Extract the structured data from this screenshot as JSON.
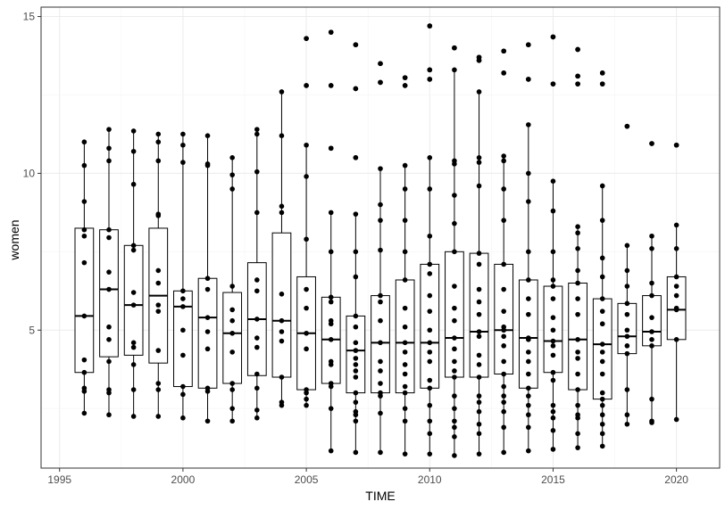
{
  "chart_data": {
    "type": "box",
    "xlabel": "TIME",
    "ylabel": "women",
    "xlim": [
      1994.25,
      2021.75
    ],
    "ylim": [
      0.6,
      15.3
    ],
    "x_ticks": [
      1995,
      2000,
      2005,
      2010,
      2015,
      2020
    ],
    "x_tick_labels": [
      "1995",
      "2000",
      "2005",
      "2010",
      "2015",
      "2020"
    ],
    "y_ticks": [
      5,
      10,
      15
    ],
    "y_tick_labels": [
      "5",
      "10",
      "15"
    ],
    "grid": true,
    "theme": "bw",
    "colors": {
      "box": "#000000",
      "point": "#000000",
      "grid": "#ebebeb",
      "panel_border": "#333333"
    },
    "boxes": [
      {
        "x": 1996,
        "q1": 3.65,
        "median": 5.45,
        "q3": 8.25,
        "whisker_low": 2.35,
        "whisker_high": 11.0,
        "outliers": []
      },
      {
        "x": 1997,
        "q1": 4.15,
        "median": 6.3,
        "q3": 8.2,
        "whisker_low": 2.3,
        "whisker_high": 11.4,
        "outliers": []
      },
      {
        "x": 1998,
        "q1": 4.2,
        "median": 5.8,
        "q3": 7.7,
        "whisker_low": 2.25,
        "whisker_high": 11.35,
        "outliers": []
      },
      {
        "x": 1999,
        "q1": 3.95,
        "median": 6.1,
        "q3": 8.25,
        "whisker_low": 2.25,
        "whisker_high": 11.25,
        "outliers": []
      },
      {
        "x": 2000,
        "q1": 3.2,
        "median": 5.75,
        "q3": 6.25,
        "whisker_low": 2.2,
        "whisker_high": 11.25,
        "outliers": []
      },
      {
        "x": 2001,
        "q1": 3.15,
        "median": 5.4,
        "q3": 6.65,
        "whisker_low": 2.1,
        "whisker_high": 11.2,
        "outliers": []
      },
      {
        "x": 2002,
        "q1": 3.3,
        "median": 4.9,
        "q3": 6.2,
        "whisker_low": 2.1,
        "whisker_high": 10.5,
        "outliers": []
      },
      {
        "x": 2003,
        "q1": 3.55,
        "median": 5.35,
        "q3": 7.15,
        "whisker_low": 2.2,
        "whisker_high": 11.4,
        "outliers": []
      },
      {
        "x": 2004,
        "q1": 3.5,
        "median": 5.3,
        "q3": 8.1,
        "whisker_low": 2.6,
        "whisker_high": 12.6,
        "outliers": []
      },
      {
        "x": 2005,
        "q1": 3.1,
        "median": 4.9,
        "q3": 6.7,
        "whisker_low": 2.6,
        "whisker_high": 10.9,
        "outliers": [
          12.8,
          14.3
        ]
      },
      {
        "x": 2006,
        "q1": 3.3,
        "median": 4.7,
        "q3": 6.05,
        "whisker_low": 1.15,
        "whisker_high": 8.75,
        "outliers": [
          10.8,
          12.8,
          14.5
        ]
      },
      {
        "x": 2007,
        "q1": 3.0,
        "median": 4.35,
        "q3": 5.45,
        "whisker_low": 1.1,
        "whisker_high": 8.7,
        "outliers": [
          10.5,
          12.7,
          14.1
        ]
      },
      {
        "x": 2008,
        "q1": 3.0,
        "median": 4.6,
        "q3": 6.1,
        "whisker_low": 1.1,
        "whisker_high": 10.15,
        "outliers": [
          12.9,
          13.5
        ]
      },
      {
        "x": 2009,
        "q1": 3.0,
        "median": 4.6,
        "q3": 6.6,
        "whisker_low": 1.05,
        "whisker_high": 10.25,
        "outliers": [
          12.8,
          13.05
        ]
      },
      {
        "x": 2010,
        "q1": 3.15,
        "median": 4.6,
        "q3": 7.1,
        "whisker_low": 1.05,
        "whisker_high": 10.5,
        "outliers": [
          13.0,
          13.3,
          14.7
        ]
      },
      {
        "x": 2011,
        "q1": 3.5,
        "median": 4.75,
        "q3": 7.5,
        "whisker_low": 1.0,
        "whisker_high": 13.3,
        "outliers": [
          14.0
        ]
      },
      {
        "x": 2012,
        "q1": 3.5,
        "median": 4.95,
        "q3": 7.45,
        "whisker_low": 1.05,
        "whisker_high": 12.6,
        "outliers": [
          13.6,
          13.7
        ]
      },
      {
        "x": 2013,
        "q1": 3.6,
        "median": 5.0,
        "q3": 7.1,
        "whisker_low": 1.1,
        "whisker_high": 10.55,
        "outliers": [
          13.2,
          13.9
        ]
      },
      {
        "x": 2014,
        "q1": 3.15,
        "median": 4.75,
        "q3": 6.6,
        "whisker_low": 1.15,
        "whisker_high": 11.55,
        "outliers": [
          13.0,
          14.1
        ]
      },
      {
        "x": 2015,
        "q1": 3.65,
        "median": 4.65,
        "q3": 6.4,
        "whisker_low": 1.2,
        "whisker_high": 9.75,
        "outliers": [
          12.85,
          14.35
        ]
      },
      {
        "x": 2016,
        "q1": 3.1,
        "median": 4.7,
        "q3": 6.5,
        "whisker_low": 1.25,
        "whisker_high": 8.3,
        "outliers": [
          12.85,
          13.1,
          13.95
        ]
      },
      {
        "x": 2017,
        "q1": 2.8,
        "median": 4.55,
        "q3": 6.0,
        "whisker_low": 1.3,
        "whisker_high": 9.6,
        "outliers": [
          12.85,
          13.2
        ]
      },
      {
        "x": 2018,
        "q1": 4.25,
        "median": 4.8,
        "q3": 5.85,
        "whisker_low": 2.0,
        "whisker_high": 7.7,
        "outliers": [
          11.5
        ]
      },
      {
        "x": 2019,
        "q1": 4.5,
        "median": 4.95,
        "q3": 6.1,
        "whisker_low": 2.05,
        "whisker_high": 8.0,
        "outliers": [
          10.95
        ]
      },
      {
        "x": 2020,
        "q1": 4.7,
        "median": 5.65,
        "q3": 6.7,
        "whisker_low": 2.15,
        "whisker_high": 8.35,
        "outliers": [
          10.9
        ]
      }
    ],
    "points": [
      {
        "x": 1996,
        "y": [
          11.0,
          10.25,
          9.1,
          8.2,
          8.0,
          7.15,
          5.45,
          4.05,
          3.65,
          3.15,
          3.05,
          2.35
        ]
      },
      {
        "x": 1997,
        "y": [
          11.4,
          10.8,
          10.4,
          8.2,
          7.95,
          6.85,
          6.3,
          5.1,
          4.7,
          4.0,
          3.1,
          3.0,
          2.3
        ]
      },
      {
        "x": 1998,
        "y": [
          11.35,
          10.7,
          9.65,
          7.7,
          7.55,
          6.2,
          5.8,
          4.6,
          4.45,
          3.9,
          3.1,
          2.25
        ]
      },
      {
        "x": 1999,
        "y": [
          11.25,
          11.0,
          10.4,
          8.7,
          8.65,
          6.9,
          6.5,
          5.8,
          5.6,
          4.35,
          3.3,
          3.1,
          2.25
        ]
      },
      {
        "x": 2000,
        "y": [
          11.25,
          10.9,
          10.35,
          6.25,
          6.0,
          5.75,
          5.0,
          4.2,
          3.2,
          2.95,
          2.2
        ]
      },
      {
        "x": 2001,
        "y": [
          11.2,
          10.3,
          10.25,
          6.65,
          6.3,
          5.4,
          4.95,
          4.4,
          3.15,
          3.05,
          2.1
        ]
      },
      {
        "x": 2002,
        "y": [
          10.5,
          9.95,
          9.5,
          6.4,
          5.65,
          5.3,
          4.9,
          4.3,
          3.3,
          3.1,
          2.5,
          2.1
        ]
      },
      {
        "x": 2003,
        "y": [
          11.4,
          11.25,
          10.05,
          8.75,
          6.6,
          6.25,
          5.35,
          4.75,
          4.45,
          3.6,
          3.15,
          2.45,
          2.2
        ]
      },
      {
        "x": 2004,
        "y": [
          12.6,
          11.2,
          8.95,
          8.75,
          6.15,
          5.3,
          4.95,
          4.65,
          3.5,
          2.7,
          2.6
        ]
      },
      {
        "x": 2005,
        "y": [
          14.3,
          12.8,
          10.9,
          9.9,
          7.9,
          6.3,
          5.7,
          4.9,
          4.4,
          3.1,
          3.0,
          2.8,
          2.6
        ]
      },
      {
        "x": 2006,
        "y": [
          14.5,
          12.8,
          10.8,
          8.75,
          7.5,
          6.05,
          5.9,
          5.3,
          5.2,
          4.7,
          4.0,
          3.9,
          3.3,
          3.2,
          2.5,
          1.15
        ]
      },
      {
        "x": 2007,
        "y": [
          14.1,
          12.7,
          10.5,
          8.7,
          7.5,
          6.7,
          5.45,
          5.1,
          4.6,
          4.35,
          4.1,
          3.9,
          3.7,
          3.5,
          3.0,
          2.7,
          2.4,
          2.3,
          2.1,
          1.1
        ]
      },
      {
        "x": 2008,
        "y": [
          13.5,
          12.9,
          10.15,
          9.0,
          8.5,
          7.55,
          6.1,
          5.9,
          5.3,
          4.6,
          4.0,
          3.7,
          3.3,
          3.0,
          2.9,
          2.35,
          1.1
        ]
      },
      {
        "x": 2009,
        "y": [
          13.05,
          12.8,
          10.25,
          9.5,
          8.5,
          7.5,
          6.6,
          5.7,
          5.1,
          4.6,
          4.3,
          3.9,
          3.6,
          3.2,
          3.0,
          2.5,
          2.1,
          1.05
        ]
      },
      {
        "x": 2010,
        "y": [
          14.7,
          13.3,
          13.0,
          10.5,
          9.5,
          8.0,
          7.1,
          6.8,
          6.1,
          5.6,
          5.0,
          4.6,
          4.3,
          4.0,
          3.4,
          3.15,
          2.6,
          2.1,
          1.7,
          1.05
        ]
      },
      {
        "x": 2011,
        "y": [
          14.0,
          13.3,
          10.4,
          10.3,
          9.3,
          8.4,
          7.5,
          6.4,
          5.7,
          5.3,
          4.75,
          4.4,
          4.0,
          3.7,
          3.5,
          2.9,
          2.5,
          2.1,
          1.9,
          1.6,
          1.0
        ]
      },
      {
        "x": 2012,
        "y": [
          13.7,
          13.6,
          12.6,
          10.5,
          10.35,
          9.6,
          7.45,
          7.1,
          6.3,
          5.9,
          5.5,
          4.95,
          4.8,
          4.2,
          3.9,
          3.5,
          2.9,
          2.7,
          2.4,
          2.0,
          1.7,
          1.05
        ]
      },
      {
        "x": 2013,
        "y": [
          13.9,
          13.2,
          10.55,
          10.4,
          9.5,
          8.5,
          7.1,
          6.3,
          5.6,
          5.1,
          5.0,
          4.8,
          4.5,
          4.0,
          3.6,
          3.2,
          2.9,
          2.7,
          2.4,
          1.9,
          1.1
        ]
      },
      {
        "x": 2014,
        "y": [
          14.1,
          13.0,
          11.55,
          10.0,
          9.1,
          7.5,
          6.6,
          6.0,
          5.5,
          4.75,
          4.7,
          4.3,
          4.0,
          3.6,
          3.15,
          2.9,
          2.6,
          2.3,
          1.9,
          1.15
        ]
      },
      {
        "x": 2015,
        "y": [
          14.35,
          12.85,
          9.75,
          8.8,
          7.5,
          6.6,
          6.4,
          6.0,
          5.4,
          5.0,
          4.65,
          4.5,
          4.2,
          3.65,
          3.4,
          2.6,
          2.4,
          2.2,
          1.8,
          1.2
        ]
      },
      {
        "x": 2016,
        "y": [
          13.95,
          13.1,
          12.85,
          8.3,
          8.1,
          7.6,
          6.9,
          6.5,
          6.0,
          5.5,
          4.7,
          4.3,
          4.1,
          3.6,
          3.1,
          2.6,
          2.3,
          2.2,
          1.7,
          1.25
        ]
      },
      {
        "x": 2017,
        "y": [
          13.2,
          12.85,
          9.6,
          8.5,
          7.3,
          6.7,
          6.0,
          5.6,
          5.2,
          4.55,
          4.3,
          4.0,
          3.6,
          3.0,
          2.8,
          2.6,
          2.3,
          2.0,
          1.7,
          1.3
        ]
      },
      {
        "x": 2018,
        "y": [
          11.5,
          7.7,
          6.9,
          6.4,
          5.85,
          5.5,
          5.0,
          4.8,
          4.5,
          4.25,
          3.1,
          2.3,
          2.0
        ]
      },
      {
        "x": 2019,
        "y": [
          10.95,
          8.0,
          7.6,
          6.5,
          6.1,
          5.4,
          4.95,
          4.7,
          4.5,
          2.8,
          2.1,
          2.05
        ]
      },
      {
        "x": 2020,
        "y": [
          10.9,
          8.35,
          7.6,
          6.7,
          6.4,
          6.1,
          5.7,
          5.65,
          4.7,
          2.15
        ]
      }
    ]
  }
}
